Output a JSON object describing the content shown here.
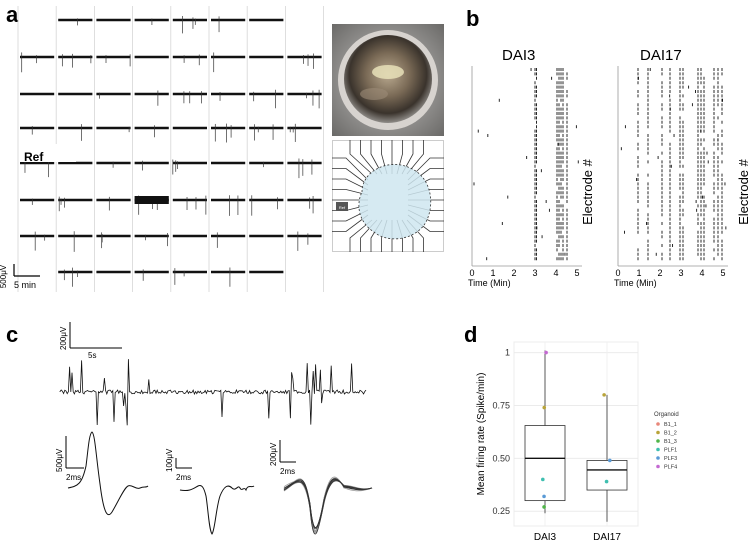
{
  "panels": {
    "a": "a",
    "b": "b",
    "c": "c",
    "d": "d"
  },
  "panel_a": {
    "ref_label": "Ref",
    "scale_amplitude": "500μV",
    "scale_time": "5 min",
    "mea_ref_label": "Ref"
  },
  "panel_b": {
    "rasters": [
      {
        "title": "DAI3",
        "xlabel": "Time (Min)",
        "ylabel": "Electrode #",
        "ticks": [
          "0",
          "1",
          "2",
          "3",
          "4",
          "5"
        ]
      },
      {
        "title": "DAI17",
        "xlabel": "Time (Min)",
        "ylabel": "Electrode #",
        "ticks": [
          "0",
          "1",
          "2",
          "3",
          "4",
          "5"
        ]
      }
    ]
  },
  "panel_c": {
    "trace_scale_amplitude": "200μV",
    "trace_scale_time": "5s",
    "waveforms": [
      {
        "amp": "500μV",
        "time": "2ms"
      },
      {
        "amp": "100μV",
        "time": "2ms"
      },
      {
        "amp": "200μV",
        "time": "2ms"
      }
    ]
  },
  "chart_data": {
    "type": "box",
    "title": "",
    "xlabel": "",
    "ylabel": "Mean firing rate (Spike/min)",
    "categories": [
      "DAI3",
      "DAI17"
    ],
    "ylim": [
      0.18,
      1.05
    ],
    "yticks": [
      "0.25",
      "0.50",
      "0.75",
      "1"
    ],
    "ytick_values": [
      0.25,
      0.5,
      0.75,
      1.0
    ],
    "boxes": [
      {
        "category": "DAI3",
        "min": 0.24,
        "q1": 0.3,
        "median": 0.5,
        "q3": 0.655,
        "max": 1.01
      },
      {
        "category": "DAI17",
        "min": 0.2,
        "q1": 0.35,
        "median": 0.445,
        "q3": 0.49,
        "max": 0.8
      }
    ],
    "points": [
      {
        "category": "DAI3",
        "value": 1.0,
        "group": "PLF4"
      },
      {
        "category": "DAI3",
        "value": 0.74,
        "group": "B1_2"
      },
      {
        "category": "DAI3",
        "value": 0.4,
        "group": "PLF1"
      },
      {
        "category": "DAI3",
        "value": 0.32,
        "group": "PLF3"
      },
      {
        "category": "DAI3",
        "value": 0.27,
        "group": "B1_3"
      },
      {
        "category": "DAI17",
        "value": 0.8,
        "group": "B1_2"
      },
      {
        "category": "DAI17",
        "value": 0.49,
        "group": "PLF3"
      },
      {
        "category": "DAI17",
        "value": 0.39,
        "group": "PLF1"
      }
    ],
    "legend": {
      "title": "Organoid",
      "position": "right",
      "entries": [
        {
          "label": "B1_1",
          "color": "#e8877a"
        },
        {
          "label": "B1_2",
          "color": "#b9a43a"
        },
        {
          "label": "B1_3",
          "color": "#4fb548"
        },
        {
          "label": "PLF1",
          "color": "#3fbfb0"
        },
        {
          "label": "PLF3",
          "color": "#5a9ad6"
        },
        {
          "label": "PLF4",
          "color": "#c46ad2"
        }
      ]
    }
  }
}
